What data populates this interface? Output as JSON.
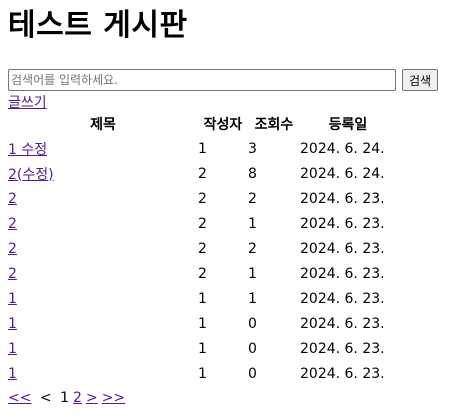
{
  "page": {
    "title": "테스트 게시판"
  },
  "search": {
    "placeholder": "검색어를 입력하세요.",
    "value": "",
    "button_label": "검색"
  },
  "write_link": "글쓰기",
  "table": {
    "headers": {
      "title": "제목",
      "author": "작성자",
      "views": "조회수",
      "date": "등록일"
    },
    "rows": [
      {
        "title": "1 수정",
        "author": "1",
        "views": "3",
        "date": "2024. 6. 24."
      },
      {
        "title": "2(수정)",
        "author": "2",
        "views": "8",
        "date": "2024. 6. 24."
      },
      {
        "title": "2",
        "author": "2",
        "views": "2",
        "date": "2024. 6. 23."
      },
      {
        "title": "2",
        "author": "2",
        "views": "1",
        "date": "2024. 6. 23."
      },
      {
        "title": "2",
        "author": "2",
        "views": "2",
        "date": "2024. 6. 23."
      },
      {
        "title": "2",
        "author": "2",
        "views": "1",
        "date": "2024. 6. 23."
      },
      {
        "title": "1",
        "author": "1",
        "views": "1",
        "date": "2024. 6. 23."
      },
      {
        "title": "1",
        "author": "1",
        "views": "0",
        "date": "2024. 6. 23."
      },
      {
        "title": "1",
        "author": "1",
        "views": "0",
        "date": "2024. 6. 23."
      },
      {
        "title": "1",
        "author": "1",
        "views": "0",
        "date": "2024. 6. 23."
      }
    ]
  },
  "pagination": {
    "first": "<<",
    "prev": "<",
    "pages": [
      "1",
      "2"
    ],
    "current": "1",
    "next": ">",
    "last": ">>"
  }
}
